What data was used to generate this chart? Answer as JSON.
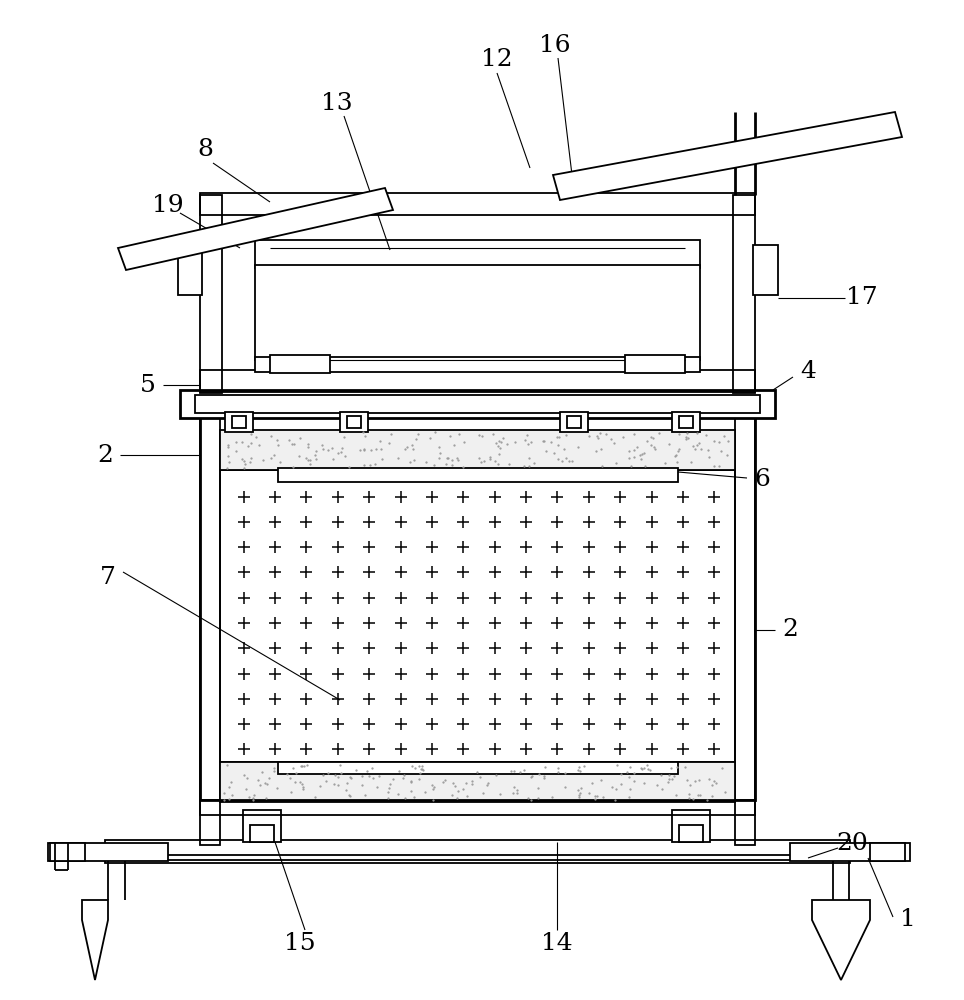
{
  "bg_color": "#ffffff",
  "line_color": "#000000",
  "lw": 1.3,
  "lw_thick": 2.0,
  "label_fontsize": 18,
  "label_color": "#000000"
}
